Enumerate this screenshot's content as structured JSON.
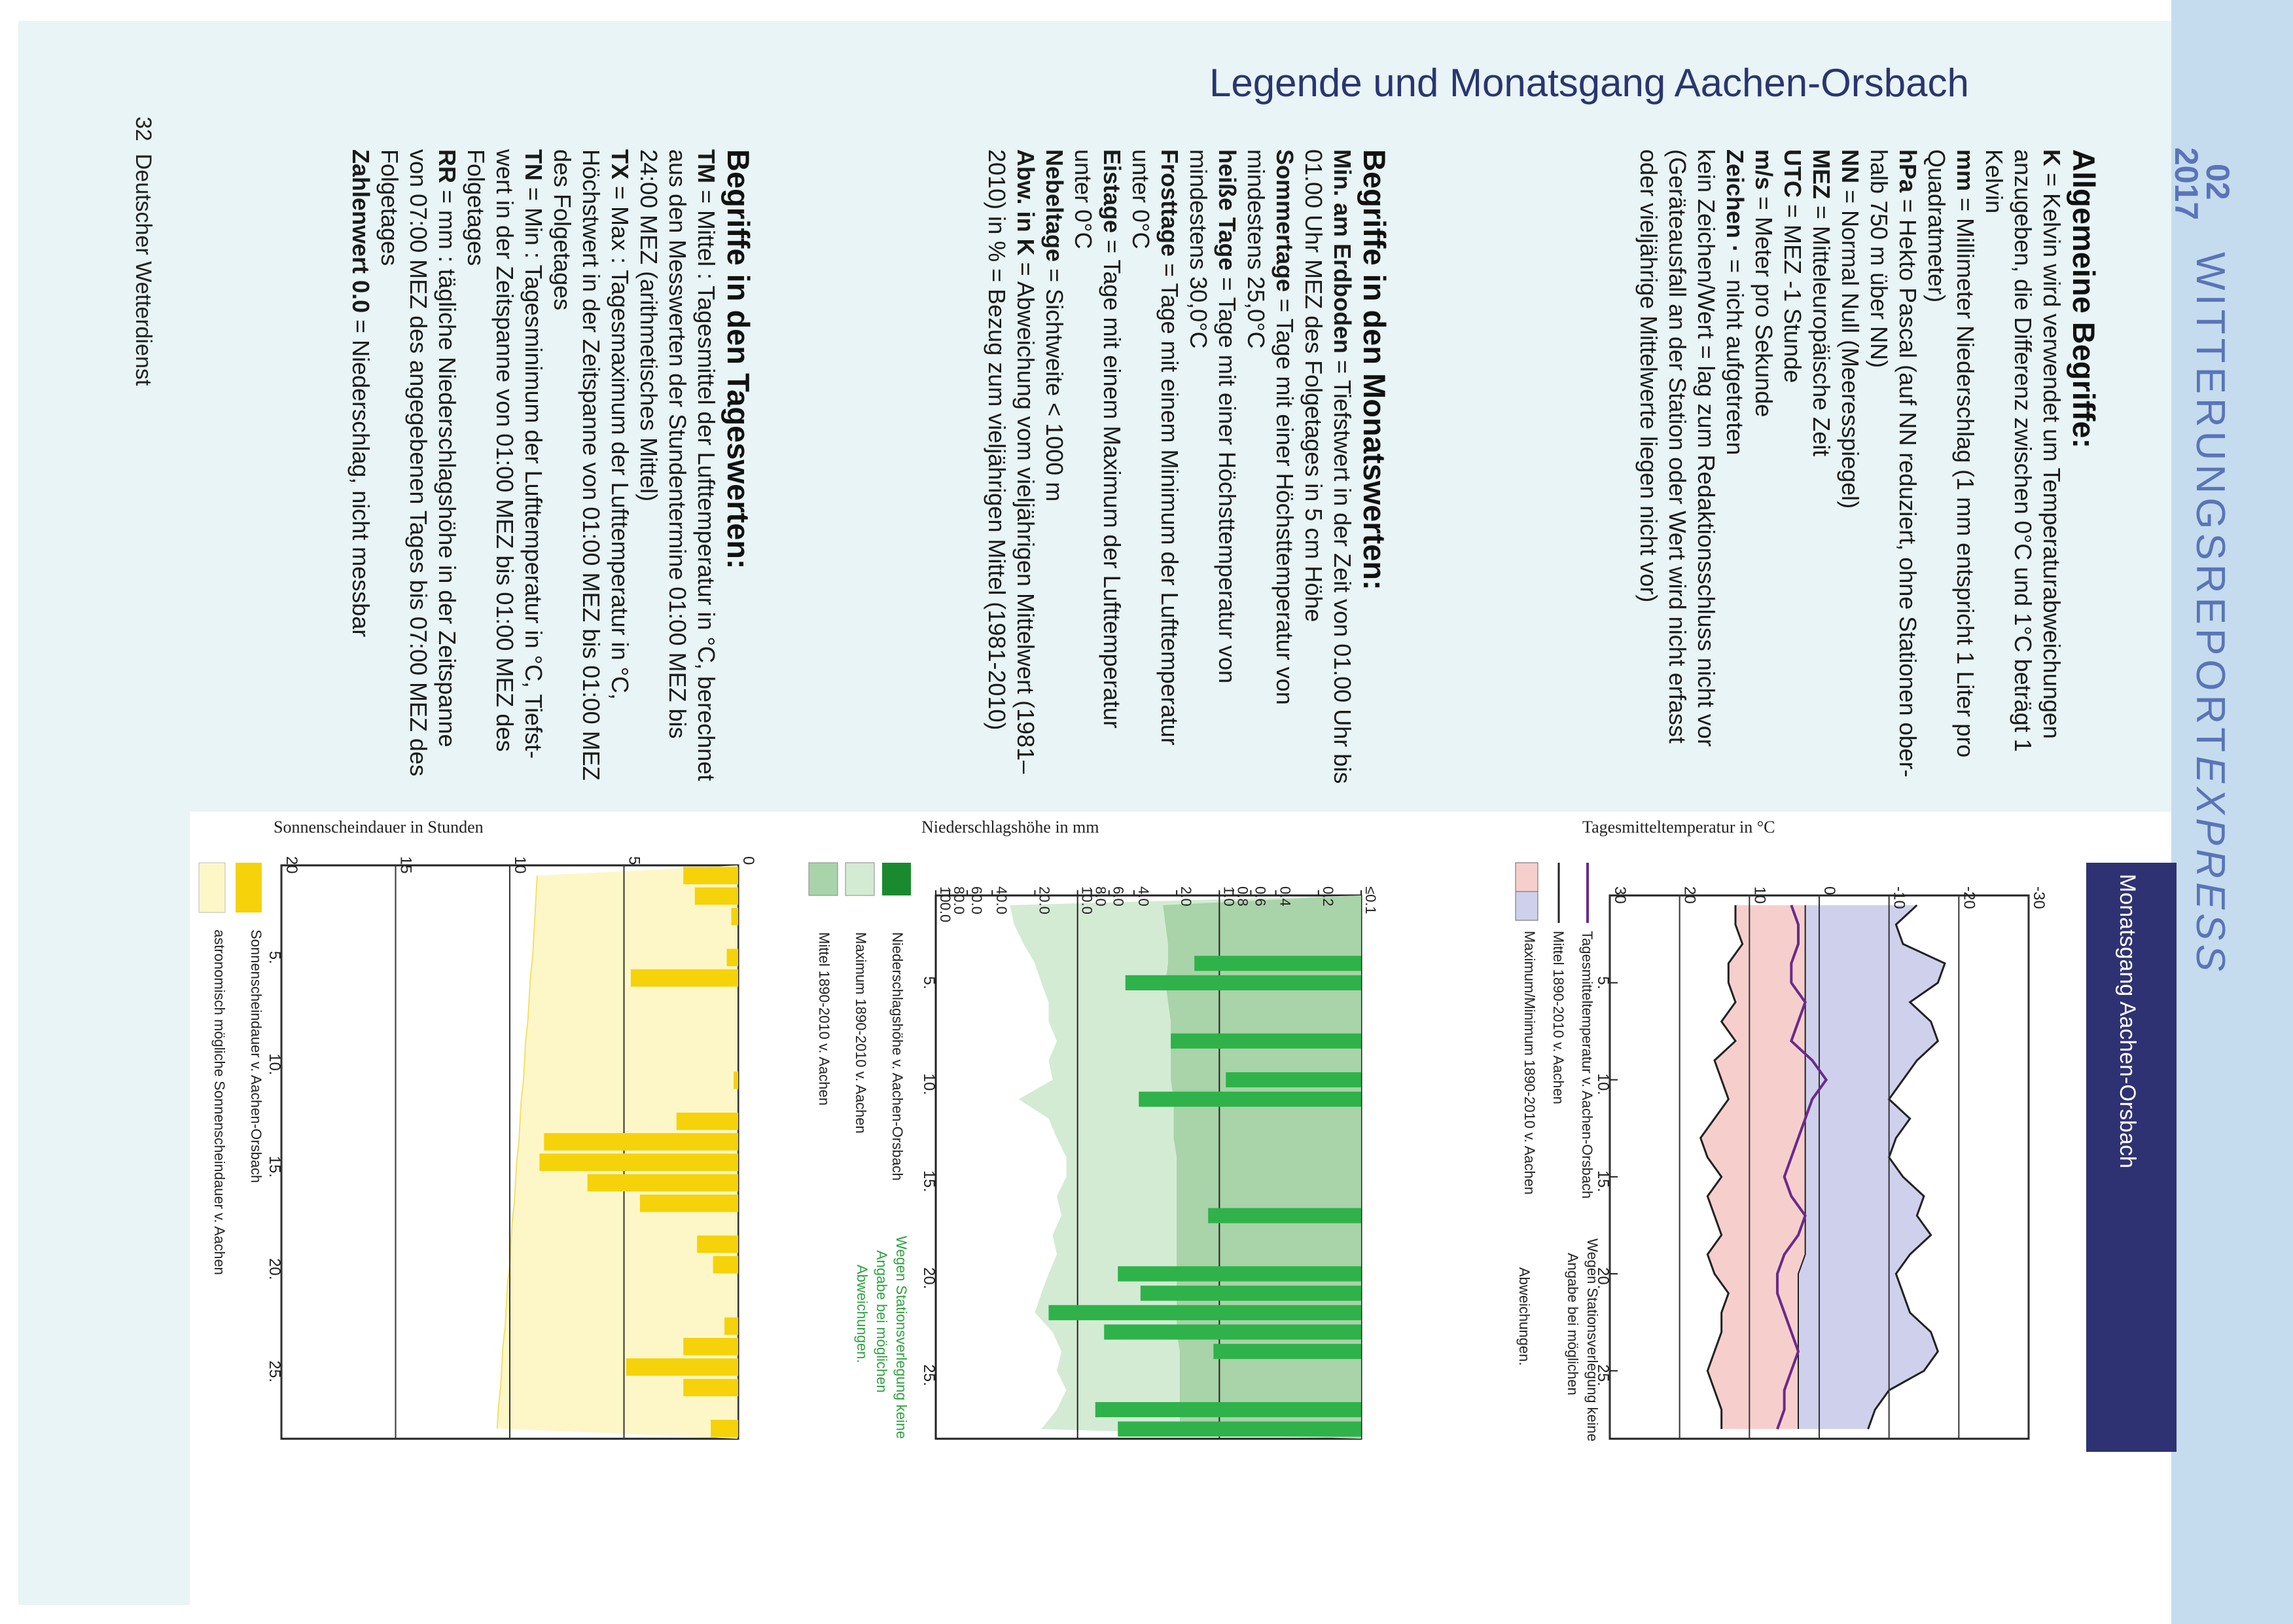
{
  "header": {
    "title": "Legende und Monatsgang Aachen-Orsbach",
    "issue": "02",
    "year": "2017",
    "brand_main": "WITTERUNGSREPORT",
    "brand_accent": "EXPRESS"
  },
  "footer": {
    "page_number": "32",
    "publisher": "Deutscher Wetterdienst"
  },
  "sections": {
    "allgemein": {
      "heading": "Allgemeine Begriffe:",
      "lines": [
        "K = Kelvin wird verwendet um Temperaturabweichungen",
        "anzugeben, die Differenz zwischen 0°C und 1°C beträgt 1",
        "Kelvin",
        "mm = Millimeter Niederschlag (1 mm entspricht 1 Liter pro",
        "Quadratmeter)",
        "hPa = Hekto Pascal (auf NN reduziert, ohne Stationen ober-",
        "halb 750 m über NN)",
        "NN = Normal Null (Meeresspiegel)",
        "MEZ = Mitteleuropäische Zeit",
        "UTC = MEZ -1 Stunde",
        "m/s = Meter pro Sekunde",
        "Zeichen  ·  = nicht aufgetreten",
        "kein Zeichen/Wert = lag zum Redaktionsschluss nicht vor",
        "(Geräteausfall an der Station oder Wert wird nicht erfasst",
        "oder vieljährige Mittelwerte liegen nicht vor)"
      ]
    },
    "monat": {
      "heading": "Begriffe in den Monatswerten:",
      "lines": [
        "Min. am Erdboden = Tiefstwert in der Zeit von 01.00 Uhr bis",
        "01.00 Uhr MEZ des Folgetages in 5 cm Höhe",
        "Sommertage = Tage mit einer Höchsttemperatur von",
        "mindestens 25,0°C",
        "heiße Tage = Tage mit einer Höchsttemperatur von",
        "mindestens 30,0°C",
        "Frosttage = Tage mit einem Minimum der Lufttemperatur",
        "unter 0°C",
        "Eistage = Tage mit einem Maximum der Lufttemperatur",
        "unter 0°C",
        "Nebeltage = Sichtweite < 1000 m",
        "Abw. in K = Abweichung vom vieljährigen Mittelwert (1981–",
        "2010) in % = Bezug zum vieljährigen Mittel (1981-2010)"
      ]
    },
    "tages": {
      "heading": "Begriffe in den Tageswerten:",
      "lines": [
        "TM = Mittel : Tagesmittel der Lufttemperatur in °C, berechnet",
        "aus den Messwerten der Stundentermine 01:00 MEZ bis",
        "24:00 MEZ (arithmetisches Mittel)",
        "TX = Max : Tagesmaximum der Lufttemperatur in °C,",
        "Höchstwert in der Zeitspanne von 01:00 MEZ bis 01:00 MEZ",
        "des Folgetages",
        "TN = Min : Tagesminimum der Lufttemperatur in °C, Tiefst-",
        "wert in der Zeitspanne von 01:00 MEZ bis 01:00 MEZ des",
        "Folgetages",
        "RR = mm : tägliche Niederschlagshöhe in der Zeitspanne",
        "von 07:00 MEZ des angegebenen Tages bis 07:00 MEZ des",
        "Folgetages",
        "Zahlenwert 0.0 = Niederschlag, nicht messbar"
      ]
    }
  },
  "monatsgang_label": "Monatsgang Aachen-Orsbach",
  "chart_data": [
    {
      "type": "line",
      "title": "Tagesmitteltemperatur in °C",
      "ylim": [
        -30,
        30
      ],
      "yticks": [
        "-30",
        "-20",
        "-10",
        "0",
        "10",
        "20",
        "30"
      ],
      "xticks": [
        "5.",
        "10.",
        "15.",
        "20.",
        "25."
      ],
      "x": [
        1,
        2,
        3,
        4,
        5,
        6,
        7,
        8,
        9,
        10,
        11,
        12,
        13,
        14,
        15,
        16,
        17,
        18,
        19,
        20,
        21,
        22,
        23,
        24,
        25,
        26,
        27,
        28
      ],
      "series": [
        {
          "name": "Tagesmitteltemperatur v. Aachen-Orsbach",
          "color": "#6a2a8a",
          "values": [
            4,
            3,
            3,
            4,
            4,
            2,
            3,
            4,
            1,
            -1,
            1,
            2,
            3,
            4,
            5,
            4,
            2,
            3,
            5,
            6,
            6,
            5,
            4,
            3,
            4,
            5,
            5,
            6
          ]
        },
        {
          "name": "Mittel 1890-2010 v. Aachen",
          "color": "#222222",
          "values": [
            2,
            2,
            2,
            2,
            2,
            2,
            2,
            2,
            2,
            2,
            2,
            2,
            2,
            2,
            2,
            2,
            2,
            2,
            2,
            3,
            3,
            3,
            3,
            3,
            3,
            3,
            3,
            3
          ]
        },
        {
          "name": "Maximum/Minimum 1890-2010 v. Aachen",
          "color": "#f2c6c6",
          "max": [
            12,
            12,
            11,
            13,
            13,
            12,
            14,
            12,
            15,
            14,
            13,
            15,
            17,
            16,
            14,
            16,
            15,
            14,
            16,
            15,
            13,
            14,
            14,
            15,
            16,
            15,
            14,
            14
          ],
          "min": [
            -14,
            -11,
            -12,
            -18,
            -17,
            -13,
            -16,
            -17,
            -14,
            -12,
            -10,
            -13,
            -11,
            -10,
            -12,
            -15,
            -14,
            -16,
            -13,
            -11,
            -12,
            -13,
            -16,
            -17,
            -15,
            -10,
            -8,
            -7
          ]
        }
      ],
      "legend": [
        "Tagesmitteltemperatur v. Aachen-Orsbach",
        "Mittel 1890-2010 v. Aachen",
        "Maximum/Minimum 1890-2010 v. Aachen"
      ],
      "note": "Wegen Stationsverlegung keine Angabe bei möglichen Abweichungen."
    },
    {
      "type": "bar",
      "title": "Niederschlagshöhe in mm",
      "yticks": [
        "≤0.1",
        "0.2",
        "0.4",
        "0.6",
        "0.8",
        "1.0",
        "2.0",
        "4.0",
        "6.0",
        "8.0",
        "10.0",
        "20.0",
        "40.0",
        "60.0",
        "80.0",
        "100.0"
      ],
      "xticks": [
        "5.",
        "10.",
        "15.",
        "20.",
        "25."
      ],
      "x": [
        1,
        2,
        3,
        4,
        5,
        6,
        7,
        8,
        9,
        10,
        11,
        12,
        13,
        14,
        15,
        16,
        17,
        18,
        19,
        20,
        21,
        22,
        23,
        24,
        25,
        26,
        27,
        28
      ],
      "values": [
        0,
        0,
        0,
        1.5,
        4.6,
        0,
        0,
        2.2,
        0,
        0.9,
        3.7,
        0,
        0,
        0,
        0,
        0,
        1.2,
        0,
        0,
        5.2,
        3.6,
        16,
        6.5,
        1.1,
        0,
        0,
        7.5,
        5.2
      ],
      "max_values": [
        30,
        28,
        24,
        20,
        18,
        16,
        16,
        14,
        16,
        15,
        26,
        16,
        14,
        12,
        12,
        14,
        13,
        15,
        14,
        16,
        18,
        20,
        15,
        13,
        14,
        12,
        14,
        18
      ],
      "mean_values": [
        2.5,
        2.4,
        2.3,
        2.3,
        2.4,
        2.3,
        2.2,
        2.2,
        2.2,
        2.2,
        2.1,
        2.1,
        2.1,
        2.0,
        2.0,
        2.0,
        2.0,
        2.0,
        2.0,
        2.0,
        2.0,
        2.0,
        2.0,
        1.9,
        1.9,
        1.9,
        1.9,
        1.9
      ],
      "legend": [
        "Niederschlagshöhe v. Aachen-Orsbach",
        "Maximum 1890-2010 v. Aachen",
        "Mittel 1890-2010 v. Aachen"
      ],
      "colors": {
        "bar": "#2fb24a",
        "max": "#cfe8d0",
        "mean": "#a8d4a8"
      },
      "note": "Wegen Stationsverlegung keine Angabe bei möglichen Abweichungen."
    },
    {
      "type": "bar",
      "title": "Sonnenscheindauer in Stunden",
      "ylim": [
        0,
        20
      ],
      "yticks": [
        "0",
        "5",
        "10",
        "15",
        "20"
      ],
      "xticks": [
        "5.",
        "10.",
        "15.",
        "20.",
        "25."
      ],
      "x": [
        1,
        2,
        3,
        4,
        5,
        6,
        7,
        8,
        9,
        10,
        11,
        12,
        13,
        14,
        15,
        16,
        17,
        18,
        19,
        20,
        21,
        22,
        23,
        24,
        25,
        26,
        27,
        28
      ],
      "values": [
        2.4,
        1.9,
        0.3,
        0,
        0.5,
        4.7,
        0,
        0,
        0,
        0,
        0.2,
        0,
        2.7,
        8.5,
        8.7,
        6.6,
        4.3,
        0,
        1.8,
        1.1,
        0,
        0,
        0.6,
        2.4,
        4.9,
        2.4,
        0,
        1.2
      ],
      "astro": [
        8.8,
        8.85,
        8.9,
        8.95,
        9.0,
        9.1,
        9.15,
        9.2,
        9.3,
        9.35,
        9.4,
        9.5,
        9.55,
        9.6,
        9.7,
        9.75,
        9.8,
        9.9,
        9.95,
        10.0,
        10.1,
        10.15,
        10.2,
        10.3,
        10.35,
        10.4,
        10.5,
        10.55
      ],
      "legend": [
        "Sonnenscheindauer v. Aachen-Orsbach",
        "astronomisch mögliche Sonnenscheindauer v. Aachen"
      ],
      "colors": {
        "bar": "#f5d20a",
        "astro": "#fdf7c8"
      }
    }
  ]
}
